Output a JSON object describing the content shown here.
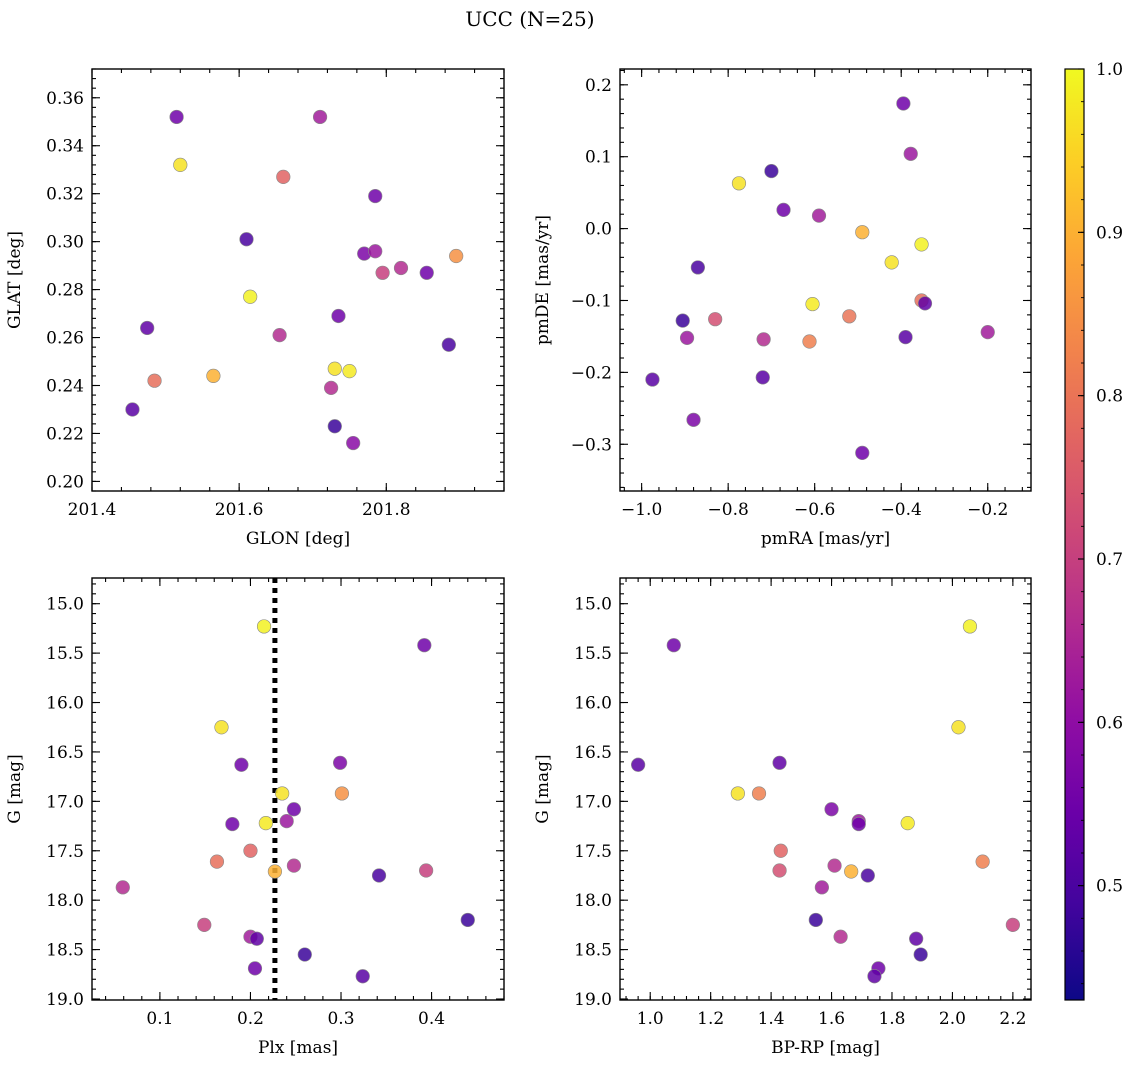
{
  "title": "UCC (N=25)",
  "colorbar": {
    "min": 0.43,
    "max": 1.0,
    "ticks": [
      0.5,
      0.6,
      0.7,
      0.8,
      0.9,
      1.0
    ],
    "tick_labels": [
      "0.5",
      "0.6",
      "0.7",
      "0.8",
      "0.9",
      "1.0"
    ],
    "colormap": "plasma"
  },
  "chart_data": [
    {
      "type": "scatter",
      "xlabel": "GLON [deg]",
      "ylabel": "GLAT [deg]",
      "xlim": [
        201.4,
        201.96
      ],
      "ylim": [
        0.196,
        0.372
      ],
      "xticks": [
        201.4,
        201.6,
        201.8
      ],
      "xtick_labels": [
        "201.4",
        "201.6",
        "201.8"
      ],
      "yticks": [
        0.2,
        0.22,
        0.24,
        0.26,
        0.28,
        0.3,
        0.32,
        0.34,
        0.36
      ],
      "ytick_labels": [
        "0.20",
        "0.22",
        "0.24",
        "0.26",
        "0.28",
        "0.30",
        "0.32",
        "0.34",
        "0.36"
      ],
      "points": [
        {
          "x": 201.515,
          "y": 0.352,
          "c": 0.55
        },
        {
          "x": 201.52,
          "y": 0.332,
          "c": 0.97
        },
        {
          "x": 201.71,
          "y": 0.352,
          "c": 0.63
        },
        {
          "x": 201.66,
          "y": 0.327,
          "c": 0.77
        },
        {
          "x": 201.61,
          "y": 0.301,
          "c": 0.5
        },
        {
          "x": 201.785,
          "y": 0.319,
          "c": 0.55
        },
        {
          "x": 201.77,
          "y": 0.295,
          "c": 0.57
        },
        {
          "x": 201.785,
          "y": 0.296,
          "c": 0.62
        },
        {
          "x": 201.795,
          "y": 0.287,
          "c": 0.7
        },
        {
          "x": 201.82,
          "y": 0.289,
          "c": 0.66
        },
        {
          "x": 201.855,
          "y": 0.287,
          "c": 0.55
        },
        {
          "x": 201.895,
          "y": 0.294,
          "c": 0.85
        },
        {
          "x": 201.615,
          "y": 0.277,
          "c": 0.99
        },
        {
          "x": 201.475,
          "y": 0.264,
          "c": 0.53
        },
        {
          "x": 201.655,
          "y": 0.261,
          "c": 0.66
        },
        {
          "x": 201.735,
          "y": 0.269,
          "c": 0.55
        },
        {
          "x": 201.485,
          "y": 0.242,
          "c": 0.79
        },
        {
          "x": 201.565,
          "y": 0.244,
          "c": 0.9
        },
        {
          "x": 201.725,
          "y": 0.239,
          "c": 0.66
        },
        {
          "x": 201.73,
          "y": 0.247,
          "c": 0.97
        },
        {
          "x": 201.75,
          "y": 0.246,
          "c": 0.98
        },
        {
          "x": 201.455,
          "y": 0.23,
          "c": 0.52
        },
        {
          "x": 201.73,
          "y": 0.223,
          "c": 0.48
        },
        {
          "x": 201.755,
          "y": 0.216,
          "c": 0.59
        },
        {
          "x": 201.885,
          "y": 0.257,
          "c": 0.5
        }
      ]
    },
    {
      "type": "scatter",
      "xlabel": "pmRA [mas/yr]",
      "ylabel": "pmDE [mas/yr]",
      "xlim": [
        -1.05,
        -0.1
      ],
      "ylim": [
        -0.365,
        0.222
      ],
      "xticks": [
        -1.0,
        -0.8,
        -0.6,
        -0.4,
        -0.2
      ],
      "xtick_labels": [
        "−1.0",
        "−0.8",
        "−0.6",
        "−0.4",
        "−0.2"
      ],
      "yticks": [
        -0.3,
        -0.2,
        -0.1,
        0.0,
        0.1,
        0.2
      ],
      "ytick_labels": [
        "−0.3",
        "−0.2",
        "−0.1",
        "0.0",
        "0.1",
        "0.2"
      ],
      "points": [
        {
          "x": -0.395,
          "y": 0.174,
          "c": 0.55
        },
        {
          "x": -0.378,
          "y": 0.104,
          "c": 0.62
        },
        {
          "x": -0.7,
          "y": 0.08,
          "c": 0.48
        },
        {
          "x": -0.775,
          "y": 0.063,
          "c": 0.97
        },
        {
          "x": -0.672,
          "y": 0.026,
          "c": 0.55
        },
        {
          "x": -0.59,
          "y": 0.018,
          "c": 0.63
        },
        {
          "x": -0.49,
          "y": -0.005,
          "c": 0.9
        },
        {
          "x": -0.353,
          "y": -0.022,
          "c": 0.99
        },
        {
          "x": -0.422,
          "y": -0.047,
          "c": 0.97
        },
        {
          "x": -0.87,
          "y": -0.054,
          "c": 0.5
        },
        {
          "x": -0.353,
          "y": -0.1,
          "c": 0.79
        },
        {
          "x": -0.345,
          "y": -0.104,
          "c": 0.53
        },
        {
          "x": -0.605,
          "y": -0.105,
          "c": 0.98
        },
        {
          "x": -0.52,
          "y": -0.122,
          "c": 0.8
        },
        {
          "x": -0.83,
          "y": -0.126,
          "c": 0.73
        },
        {
          "x": -0.905,
          "y": -0.128,
          "c": 0.48
        },
        {
          "x": -0.2,
          "y": -0.144,
          "c": 0.63
        },
        {
          "x": -0.39,
          "y": -0.151,
          "c": 0.52
        },
        {
          "x": -0.895,
          "y": -0.152,
          "c": 0.62
        },
        {
          "x": -0.718,
          "y": -0.154,
          "c": 0.66
        },
        {
          "x": -0.612,
          "y": -0.157,
          "c": 0.82
        },
        {
          "x": -0.975,
          "y": -0.21,
          "c": 0.52
        },
        {
          "x": -0.72,
          "y": -0.207,
          "c": 0.52
        },
        {
          "x": -0.88,
          "y": -0.266,
          "c": 0.57
        },
        {
          "x": -0.49,
          "y": -0.312,
          "c": 0.55
        }
      ]
    },
    {
      "type": "scatter",
      "xlabel": "Plx [mas]",
      "ylabel": "G [mag]",
      "xlim": [
        0.025,
        0.48
      ],
      "ylim": [
        19.01,
        14.74
      ],
      "y_inverted": true,
      "xticks": [
        0.1,
        0.2,
        0.3,
        0.4
      ],
      "xtick_labels": [
        "0.1",
        "0.2",
        "0.3",
        "0.4"
      ],
      "yticks": [
        15.0,
        15.5,
        16.0,
        16.5,
        17.0,
        17.5,
        18.0,
        18.5,
        19.0
      ],
      "ytick_labels": [
        "15.0",
        "15.5",
        "16.0",
        "16.5",
        "17.0",
        "17.5",
        "18.0",
        "18.5",
        "19.0"
      ],
      "vline": 0.227,
      "points": [
        {
          "x": 0.215,
          "y": 15.23,
          "c": 0.99
        },
        {
          "x": 0.392,
          "y": 15.42,
          "c": 0.55
        },
        {
          "x": 0.168,
          "y": 16.25,
          "c": 0.97
        },
        {
          "x": 0.19,
          "y": 16.63,
          "c": 0.55
        },
        {
          "x": 0.299,
          "y": 16.61,
          "c": 0.57
        },
        {
          "x": 0.235,
          "y": 16.92,
          "c": 0.97
        },
        {
          "x": 0.301,
          "y": 16.92,
          "c": 0.85
        },
        {
          "x": 0.248,
          "y": 17.08,
          "c": 0.55
        },
        {
          "x": 0.18,
          "y": 17.23,
          "c": 0.55
        },
        {
          "x": 0.217,
          "y": 17.22,
          "c": 0.98
        },
        {
          "x": 0.24,
          "y": 17.2,
          "c": 0.62
        },
        {
          "x": 0.2,
          "y": 17.5,
          "c": 0.77
        },
        {
          "x": 0.163,
          "y": 17.61,
          "c": 0.79
        },
        {
          "x": 0.248,
          "y": 17.65,
          "c": 0.66
        },
        {
          "x": 0.227,
          "y": 17.71,
          "c": 0.9
        },
        {
          "x": 0.342,
          "y": 17.75,
          "c": 0.5
        },
        {
          "x": 0.394,
          "y": 17.7,
          "c": 0.7
        },
        {
          "x": 0.059,
          "y": 17.87,
          "c": 0.66
        },
        {
          "x": 0.149,
          "y": 18.25,
          "c": 0.7
        },
        {
          "x": 0.44,
          "y": 18.2,
          "c": 0.48
        },
        {
          "x": 0.2,
          "y": 18.37,
          "c": 0.63
        },
        {
          "x": 0.207,
          "y": 18.39,
          "c": 0.53
        },
        {
          "x": 0.26,
          "y": 18.55,
          "c": 0.48
        },
        {
          "x": 0.205,
          "y": 18.69,
          "c": 0.55
        },
        {
          "x": 0.324,
          "y": 18.77,
          "c": 0.52
        }
      ]
    },
    {
      "type": "scatter",
      "xlabel": "BP-RP [mag]",
      "ylabel": "G [mag]",
      "xlim": [
        0.9,
        2.26
      ],
      "ylim": [
        19.01,
        14.74
      ],
      "y_inverted": true,
      "xticks": [
        1.0,
        1.2,
        1.4,
        1.6,
        1.8,
        2.0,
        2.2
      ],
      "xtick_labels": [
        "1.0",
        "1.2",
        "1.4",
        "1.6",
        "1.8",
        "2.0",
        "2.2"
      ],
      "yticks": [
        15.0,
        15.5,
        16.0,
        16.5,
        17.0,
        17.5,
        18.0,
        18.5,
        19.0
      ],
      "ytick_labels": [
        "15.0",
        "15.5",
        "16.0",
        "16.5",
        "17.0",
        "17.5",
        "18.0",
        "18.5",
        "19.0"
      ],
      "points": [
        {
          "x": 2.058,
          "y": 15.23,
          "c": 0.99
        },
        {
          "x": 1.078,
          "y": 15.42,
          "c": 0.55
        },
        {
          "x": 2.02,
          "y": 16.25,
          "c": 0.97
        },
        {
          "x": 0.96,
          "y": 16.63,
          "c": 0.52
        },
        {
          "x": 1.428,
          "y": 16.61,
          "c": 0.53
        },
        {
          "x": 1.29,
          "y": 16.92,
          "c": 0.97
        },
        {
          "x": 1.36,
          "y": 16.92,
          "c": 0.82
        },
        {
          "x": 1.6,
          "y": 17.08,
          "c": 0.57
        },
        {
          "x": 1.69,
          "y": 17.2,
          "c": 0.62
        },
        {
          "x": 1.69,
          "y": 17.23,
          "c": 0.55
        },
        {
          "x": 1.852,
          "y": 17.22,
          "c": 0.98
        },
        {
          "x": 1.432,
          "y": 17.5,
          "c": 0.77
        },
        {
          "x": 2.1,
          "y": 17.61,
          "c": 0.82
        },
        {
          "x": 1.61,
          "y": 17.65,
          "c": 0.66
        },
        {
          "x": 1.665,
          "y": 17.71,
          "c": 0.9
        },
        {
          "x": 1.428,
          "y": 17.7,
          "c": 0.73
        },
        {
          "x": 1.72,
          "y": 17.75,
          "c": 0.5
        },
        {
          "x": 1.568,
          "y": 17.87,
          "c": 0.63
        },
        {
          "x": 1.548,
          "y": 18.2,
          "c": 0.48
        },
        {
          "x": 2.2,
          "y": 18.25,
          "c": 0.7
        },
        {
          "x": 1.63,
          "y": 18.37,
          "c": 0.66
        },
        {
          "x": 1.88,
          "y": 18.39,
          "c": 0.53
        },
        {
          "x": 1.895,
          "y": 18.55,
          "c": 0.48
        },
        {
          "x": 1.755,
          "y": 18.69,
          "c": 0.55
        },
        {
          "x": 1.742,
          "y": 18.77,
          "c": 0.53
        }
      ]
    }
  ]
}
